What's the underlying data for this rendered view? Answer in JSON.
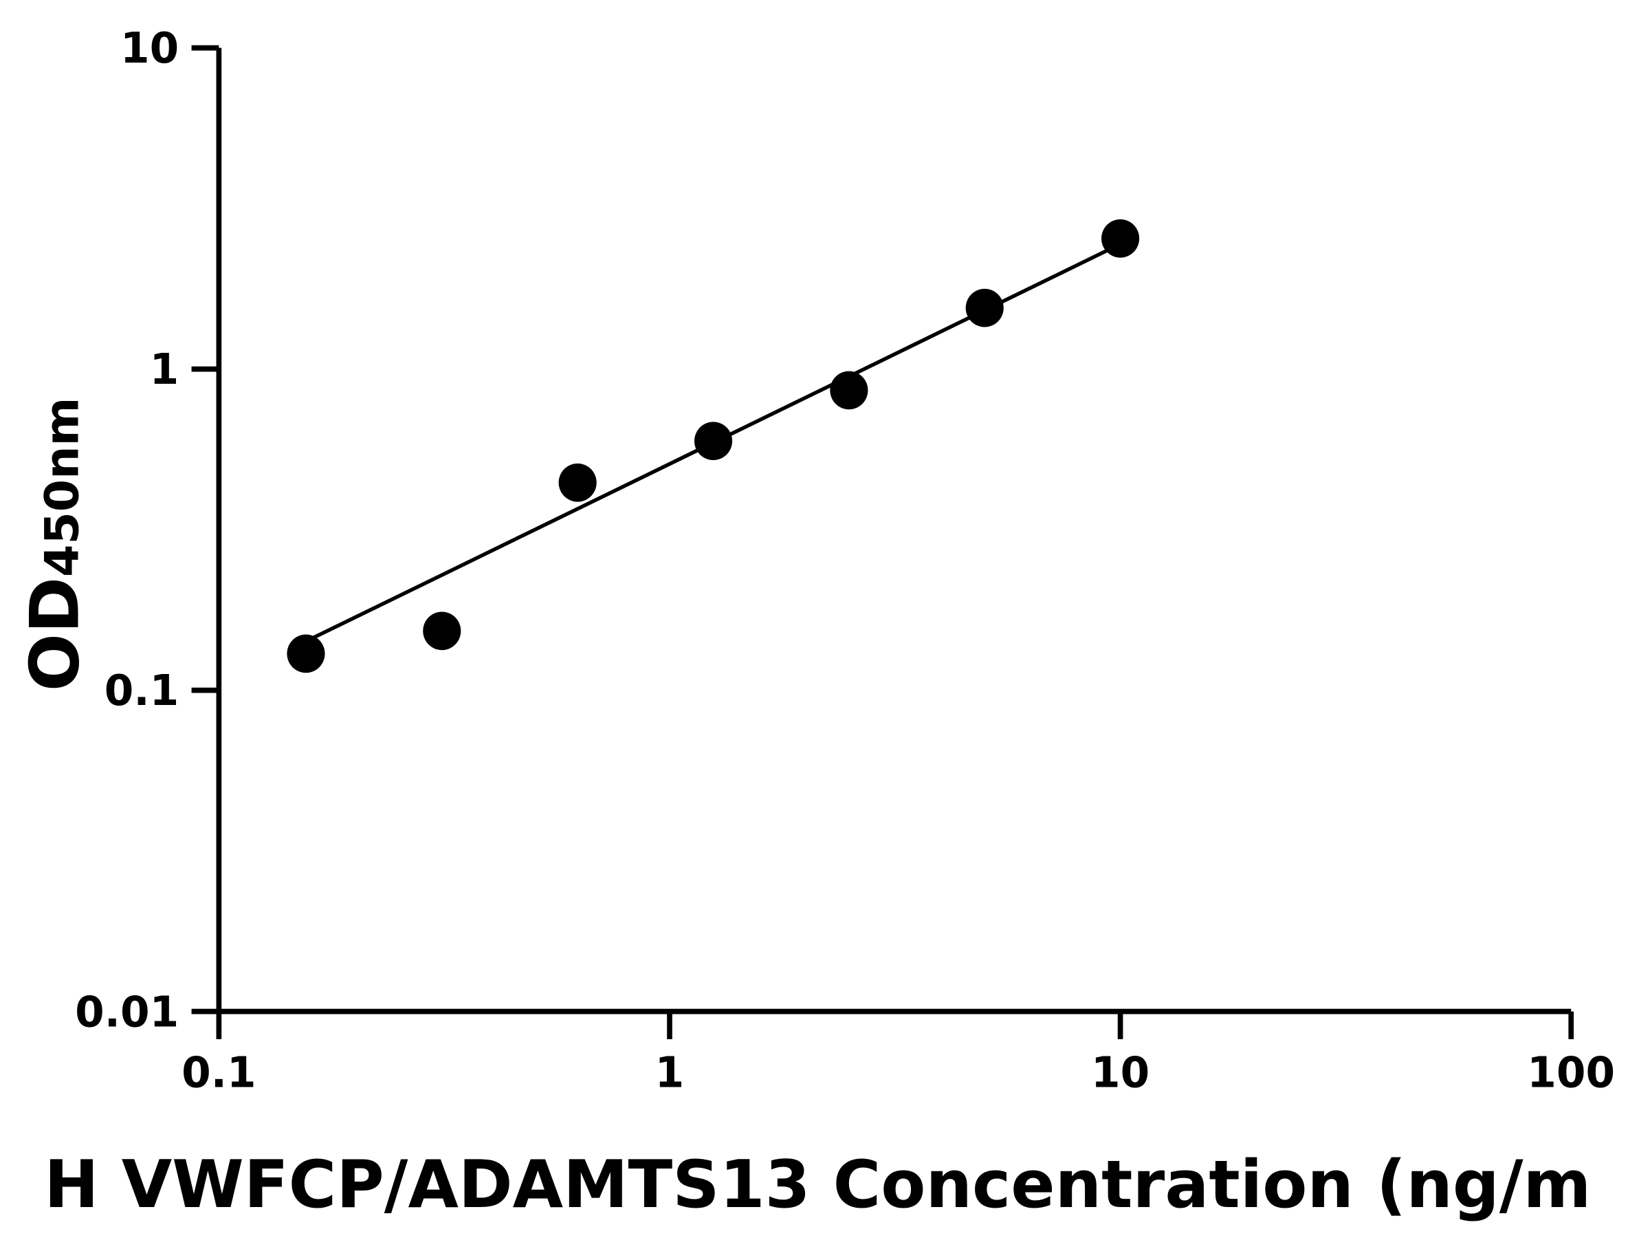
{
  "chart_data": {
    "type": "scatter",
    "xlabel": "H VWFCP/ADAMTS13 Concentration (ng/m",
    "ylabel": "OD",
    "ylabel_subscript": "450nm",
    "xscale": "log",
    "yscale": "log",
    "xlim": [
      0.1,
      100
    ],
    "ylim": [
      0.01,
      10
    ],
    "xticks": [
      0.1,
      1,
      10,
      100
    ],
    "yticks": [
      0.01,
      0.1,
      1,
      10
    ],
    "x": [
      0.156,
      0.3125,
      0.625,
      1.25,
      2.5,
      5,
      10
    ],
    "series": [
      {
        "color": "#000000",
        "values": [
          0.13,
          0.153,
          0.443,
          0.597,
          0.859,
          1.55,
          2.55
        ]
      }
    ],
    "fit": {
      "color": "#000000",
      "x": [
        0.156,
        10
      ],
      "values": [
        0.142,
        2.45
      ]
    }
  }
}
